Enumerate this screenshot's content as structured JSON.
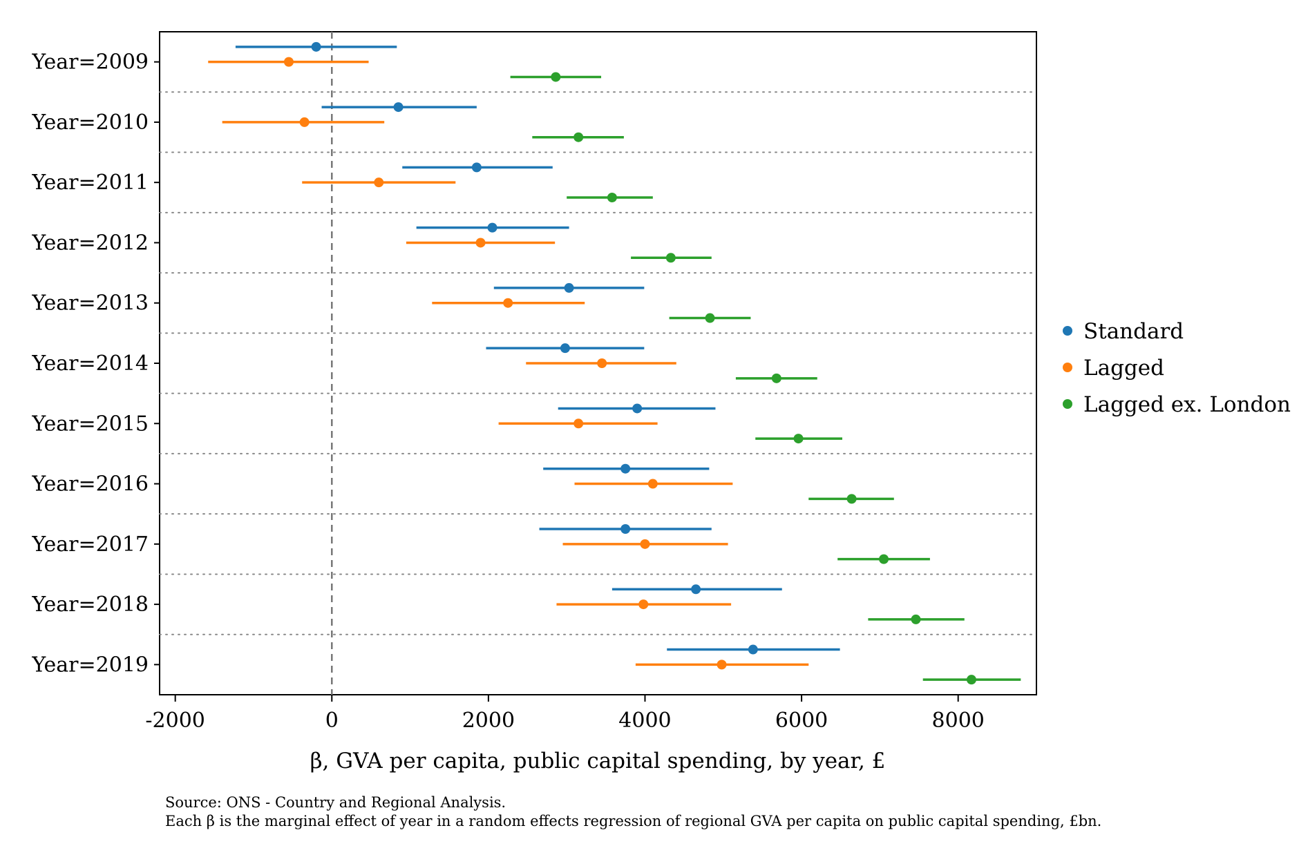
{
  "chart_data": {
    "type": "scatter",
    "subtype": "coefficient-plot-with-confidence-intervals",
    "title": "",
    "xlabel": "β, GVA per capita, public capital spending, by year, £",
    "ylabel": "",
    "xlim": [
      -2200,
      9000
    ],
    "xticks": [
      -2000,
      0,
      2000,
      4000,
      6000,
      8000
    ],
    "xtick_labels": [
      "-2000",
      "0",
      "2000",
      "4000",
      "6000",
      "8000"
    ],
    "reference_line_x": 0,
    "categories": [
      "Year=2009",
      "Year=2010",
      "Year=2011",
      "Year=2012",
      "Year=2013",
      "Year=2014",
      "Year=2015",
      "Year=2016",
      "Year=2017",
      "Year=2018",
      "Year=2019"
    ],
    "legend_position": "right",
    "series": [
      {
        "name": "Standard",
        "color": "#1f77b4",
        "estimates": [
          -200,
          850,
          1850,
          2050,
          3030,
          2980,
          3900,
          3750,
          3750,
          4650,
          5380
        ],
        "ci_low": [
          -1230,
          -130,
          900,
          1080,
          2070,
          1970,
          2890,
          2700,
          2650,
          3580,
          4280
        ],
        "ci_high": [
          830,
          1850,
          2820,
          3030,
          3990,
          3990,
          4900,
          4820,
          4850,
          5750,
          6490
        ]
      },
      {
        "name": "Lagged",
        "color": "#ff7f0e",
        "estimates": [
          -550,
          -350,
          600,
          1900,
          2250,
          3450,
          3150,
          4100,
          4000,
          3980,
          4980
        ],
        "ci_low": [
          -1580,
          -1400,
          -380,
          950,
          1280,
          2480,
          2130,
          3100,
          2950,
          2870,
          3880
        ],
        "ci_high": [
          470,
          670,
          1580,
          2850,
          3230,
          4400,
          4160,
          5120,
          5060,
          5100,
          6090
        ]
      },
      {
        "name": "Lagged ex. London",
        "color": "#2ca02c",
        "estimates": [
          2860,
          3150,
          3580,
          4330,
          4830,
          5680,
          5960,
          6640,
          7050,
          7460,
          8170
        ],
        "ci_low": [
          2280,
          2560,
          3000,
          3820,
          4310,
          5160,
          5410,
          6090,
          6460,
          6850,
          7550
        ],
        "ci_high": [
          3440,
          3730,
          4100,
          4850,
          5350,
          6200,
          6520,
          7180,
          7640,
          8080,
          8800
        ]
      }
    ],
    "notes": [
      "Source: ONS - Country and Regional Analysis.",
      "Each β is the marginal effect of year in a random effects regression of regional GVA per capita on public capital spending, £bn."
    ]
  }
}
